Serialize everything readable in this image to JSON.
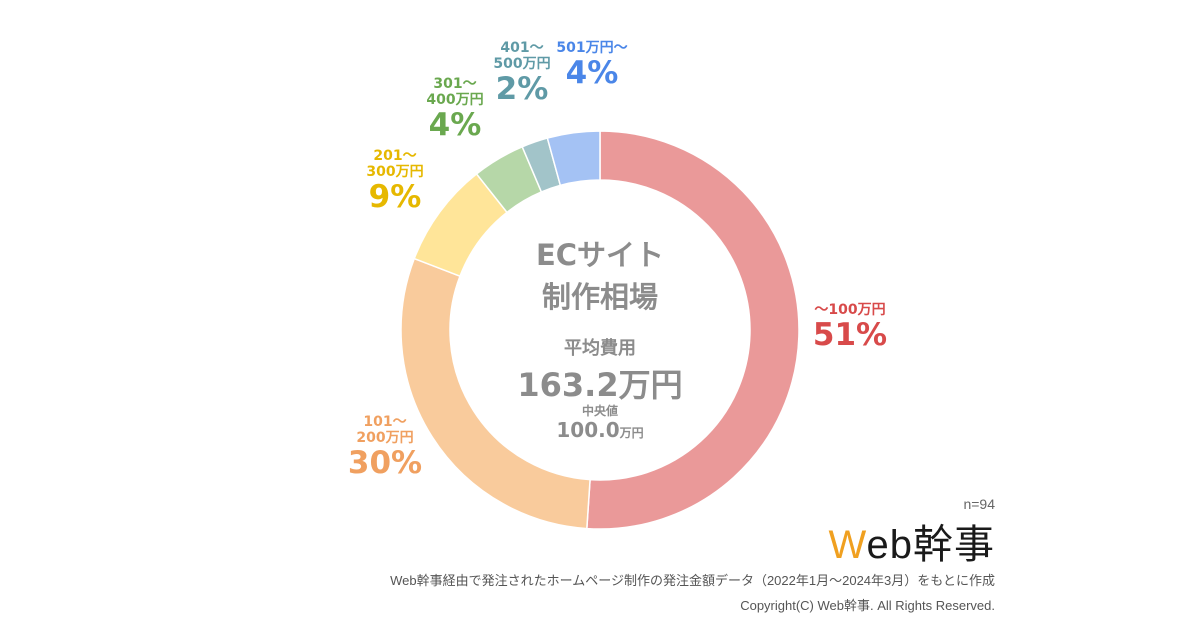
{
  "chart_data": {
    "type": "pie",
    "title": "ECサイト",
    "subtitle": "制作相場",
    "center": {
      "avg_label": "平均費用",
      "avg_value": "163.2万円",
      "median_label": "中央値",
      "median_value": "100.0",
      "median_unit": "万円"
    },
    "slices": [
      {
        "range_line1": "〜100万円",
        "range_line2": "",
        "percent_label": "51%",
        "value": 51.06,
        "color": "#ea9999",
        "label_color": "#d84a4a"
      },
      {
        "range_line1": "101〜",
        "range_line2": "200万円",
        "percent_label": "30%",
        "value": 29.79,
        "color": "#f9cb9c",
        "label_color": "#f0a060"
      },
      {
        "range_line1": "201〜",
        "range_line2": "300万円",
        "percent_label": "9%",
        "value": 8.51,
        "color": "#ffe599",
        "label_color": "#e6b800"
      },
      {
        "range_line1": "301〜",
        "range_line2": "400万円",
        "percent_label": "4%",
        "value": 4.26,
        "color": "#b6d7a8",
        "label_color": "#6aa84f"
      },
      {
        "range_line1": "401〜",
        "range_line2": "500万円",
        "percent_label": "2%",
        "value": 2.13,
        "color": "#a2c4c9",
        "label_color": "#5f9aa6"
      },
      {
        "range_line1": "501万円〜",
        "range_line2": "",
        "percent_label": "4%",
        "value": 4.26,
        "color": "#a4c2f4",
        "label_color": "#4a86e8"
      }
    ]
  },
  "sample_size": "n=94",
  "brand": {
    "part1": "W",
    "part2": "eb幹事"
  },
  "footnote": "Web幹事経由で発注されたホームページ制作の発注金額データ（2022年1月〜2024年3月）をもとに作成",
  "copyright": "Copyright(C) Web幹事. All Rights Reserved."
}
